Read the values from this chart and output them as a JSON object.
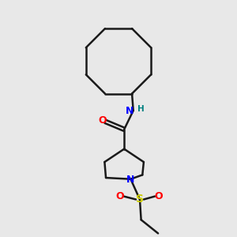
{
  "background_color": "#e8e8e8",
  "line_color": "#1a1a1a",
  "n_color": "#0000ff",
  "o_color": "#ff0000",
  "s_color": "#cccc00",
  "h_color": "#008080",
  "line_width": 1.8,
  "figsize": [
    3.0,
    3.0
  ],
  "dpi": 100,
  "xlim": [
    2.5,
    7.5
  ],
  "ylim": [
    0.5,
    9.5
  ]
}
